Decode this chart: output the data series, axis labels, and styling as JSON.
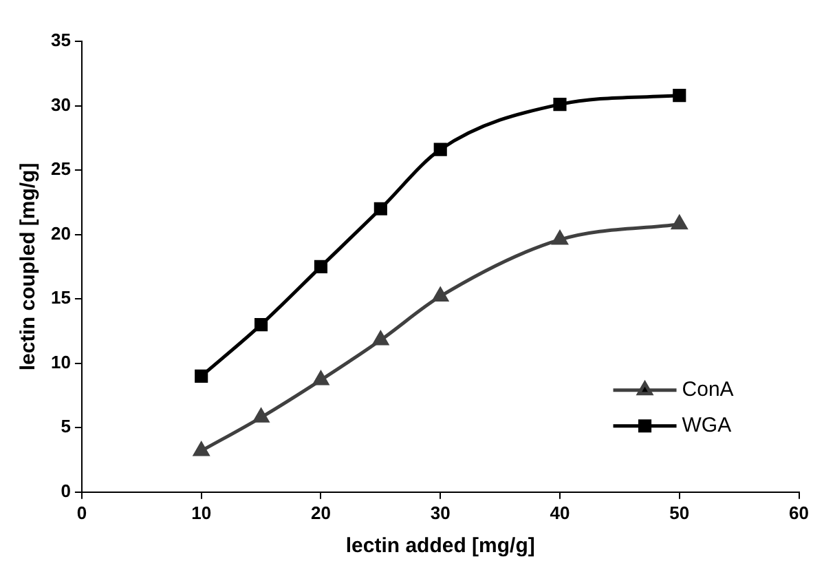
{
  "chart_data": {
    "type": "line",
    "xlabel": "lectin added [mg/g]",
    "ylabel": "lectin coupled [mg/g]",
    "x": [
      10,
      15,
      20,
      25,
      30,
      40,
      50
    ],
    "series": [
      {
        "name": "ConA",
        "color": "#404040",
        "marker": "triangle",
        "values": [
          3.2,
          5.8,
          8.7,
          11.8,
          15.2,
          19.6,
          20.8
        ]
      },
      {
        "name": "WGA",
        "color": "#000000",
        "marker": "square",
        "values": [
          9,
          13,
          17.5,
          22,
          26.6,
          30.1,
          30.8
        ]
      }
    ],
    "xlim": [
      0,
      60
    ],
    "xticks": [
      0,
      10,
      20,
      30,
      40,
      50,
      60
    ],
    "ylim": [
      0,
      35
    ],
    "yticks": [
      0,
      5,
      10,
      15,
      20,
      25,
      30,
      35
    ],
    "grid": false,
    "legend": "bottom right",
    "line_style": "solid"
  }
}
